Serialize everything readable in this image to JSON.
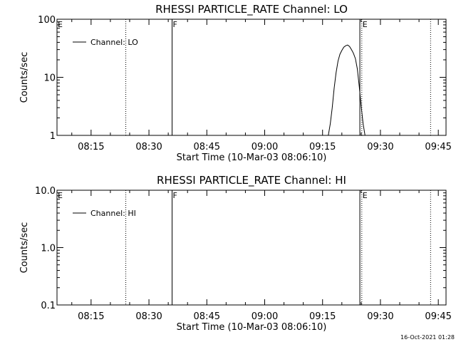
{
  "footer": {
    "timestamp": "16-Oct-2021 01:28"
  },
  "chart_data": [
    {
      "type": "line",
      "title": "RHESSI PARTICLE_RATE Channel: LO",
      "xlabel": "Start Time (10-Mar-03 08:06:10)",
      "ylabel": "Counts/sec",
      "yscale": "log",
      "ylim": [
        1,
        100
      ],
      "yticks": [
        1,
        10,
        100
      ],
      "ytick_labels": [
        "1",
        "10",
        "100"
      ],
      "xlim": [
        "08:06:10",
        "09:47:00"
      ],
      "xticks": [
        "08:15",
        "08:30",
        "08:45",
        "09:00",
        "09:15",
        "09:30",
        "09:45"
      ],
      "grid": false,
      "legend": {
        "position": "top-left",
        "entries": [
          "Channel: LO"
        ]
      },
      "series": [
        {
          "name": "Channel: LO",
          "x": [
            "09:16:30",
            "09:17:00",
            "09:17:30",
            "09:18:00",
            "09:18:30",
            "09:19:00",
            "09:19:30",
            "09:20:00",
            "09:20:30",
            "09:21:00",
            "09:21:30",
            "09:22:00",
            "09:22:30",
            "09:23:00",
            "09:23:30",
            "09:24:00",
            "09:24:30",
            "09:25:00",
            "09:25:30",
            "09:26:00"
          ],
          "y": [
            1.0,
            1.6,
            3.0,
            6.5,
            12.0,
            19.0,
            25.0,
            29.0,
            33.0,
            35.0,
            36.0,
            34.0,
            30.0,
            26.0,
            21.0,
            14.0,
            7.0,
            3.2,
            1.6,
            1.0
          ]
        }
      ],
      "markers": [
        {
          "label": "E",
          "time": "08:06:10",
          "style": "dotted"
        },
        {
          "label": "",
          "time": "08:24:00",
          "style": "dotted"
        },
        {
          "label": "F",
          "time": "08:36:00",
          "style": "solid"
        },
        {
          "label": "",
          "time": "09:24:40",
          "style": "solid"
        },
        {
          "label": "E",
          "time": "09:25:10",
          "style": "dotted"
        },
        {
          "label": "",
          "time": "09:43:00",
          "style": "dotted"
        }
      ]
    },
    {
      "type": "line",
      "title": "RHESSI PARTICLE_RATE Channel: HI",
      "xlabel": "Start Time (10-Mar-03 08:06:10)",
      "ylabel": "Counts/sec",
      "yscale": "log",
      "ylim": [
        0.1,
        10.0
      ],
      "yticks": [
        0.1,
        1.0,
        10.0
      ],
      "ytick_labels": [
        "0.1",
        "1.0",
        "10.0"
      ],
      "xlim": [
        "08:06:10",
        "09:47:00"
      ],
      "xticks": [
        "08:15",
        "08:30",
        "08:45",
        "09:00",
        "09:15",
        "09:30",
        "09:45"
      ],
      "grid": false,
      "legend": {
        "position": "top-left",
        "entries": [
          "Channel: HI"
        ]
      },
      "series": [
        {
          "name": "Channel: HI",
          "x": [],
          "y": []
        }
      ],
      "markers": [
        {
          "label": "E",
          "time": "08:06:10",
          "style": "dotted"
        },
        {
          "label": "",
          "time": "08:24:00",
          "style": "dotted"
        },
        {
          "label": "F",
          "time": "08:36:00",
          "style": "solid"
        },
        {
          "label": "",
          "time": "09:24:40",
          "style": "solid"
        },
        {
          "label": "E",
          "time": "09:25:10",
          "style": "dotted"
        },
        {
          "label": "",
          "time": "09:43:00",
          "style": "dotted"
        }
      ]
    }
  ]
}
